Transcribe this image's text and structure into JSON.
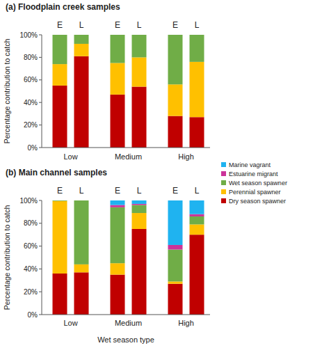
{
  "chart_data": [
    {
      "type": "bar",
      "stacked": true,
      "title": "(a) Floodplain creek samples",
      "y_label": "Percentage contribution to catch",
      "categories": [
        "E",
        "L",
        "E",
        "L",
        "E",
        "L"
      ],
      "category_groups": [
        "Low",
        "Medium",
        "High"
      ],
      "ylim": [
        0,
        100
      ],
      "yticks": [
        {
          "value": 0,
          "label": "0%"
        },
        {
          "value": 20,
          "label": "20%"
        },
        {
          "value": 40,
          "label": "40%"
        },
        {
          "value": 60,
          "label": "60%"
        },
        {
          "value": 80,
          "label": "80%"
        },
        {
          "value": 100,
          "label": "100%"
        }
      ],
      "grid": false,
      "legend": "right",
      "series": [
        {
          "name": "Dry season spawner",
          "color": "#c00000",
          "values": [
            55,
            81,
            47,
            54,
            28,
            27
          ]
        },
        {
          "name": "Perennial spawner",
          "color": "#ffc000",
          "values": [
            19,
            11,
            28,
            26,
            28,
            49
          ]
        },
        {
          "name": "Wet season spawner",
          "color": "#70ad47",
          "values": [
            26,
            8,
            25,
            20,
            44,
            24
          ]
        },
        {
          "name": "Estuarine migrant",
          "color": "#cc3399",
          "values": [
            0,
            0,
            0,
            0,
            0,
            0
          ]
        },
        {
          "name": "Marine vagrant",
          "color": "#1fb3f0",
          "values": [
            0,
            0,
            0,
            0,
            0,
            0
          ]
        }
      ]
    },
    {
      "type": "bar",
      "stacked": true,
      "title": "(b) Main channel samples",
      "y_label": "Percentage contribution to catch",
      "x_label": "Wet season type",
      "categories": [
        "E",
        "L",
        "E",
        "L",
        "E",
        "L"
      ],
      "category_groups": [
        "Low",
        "Medium",
        "High"
      ],
      "ylim": [
        0,
        100
      ],
      "yticks": [
        {
          "value": 0,
          "label": "0%"
        },
        {
          "value": 20,
          "label": "20%"
        },
        {
          "value": 40,
          "label": "40%"
        },
        {
          "value": 60,
          "label": "60%"
        },
        {
          "value": 80,
          "label": "80%"
        },
        {
          "value": 100,
          "label": "100%"
        }
      ],
      "grid": false,
      "series": [
        {
          "name": "Dry season spawner",
          "color": "#c00000",
          "values": [
            36,
            37,
            35,
            75,
            27,
            70
          ]
        },
        {
          "name": "Perennial spawner",
          "color": "#ffc000",
          "values": [
            63.5,
            7,
            10,
            14,
            2,
            9
          ]
        },
        {
          "name": "Wet season spawner",
          "color": "#70ad47",
          "values": [
            0.5,
            56,
            49,
            7,
            28,
            7
          ]
        },
        {
          "name": "Estuarine migrant",
          "color": "#cc3399",
          "values": [
            0,
            0,
            2,
            1,
            4,
            2
          ]
        },
        {
          "name": "Marine vagrant",
          "color": "#1fb3f0",
          "values": [
            0,
            0,
            4,
            3,
            39,
            12
          ]
        }
      ]
    }
  ]
}
